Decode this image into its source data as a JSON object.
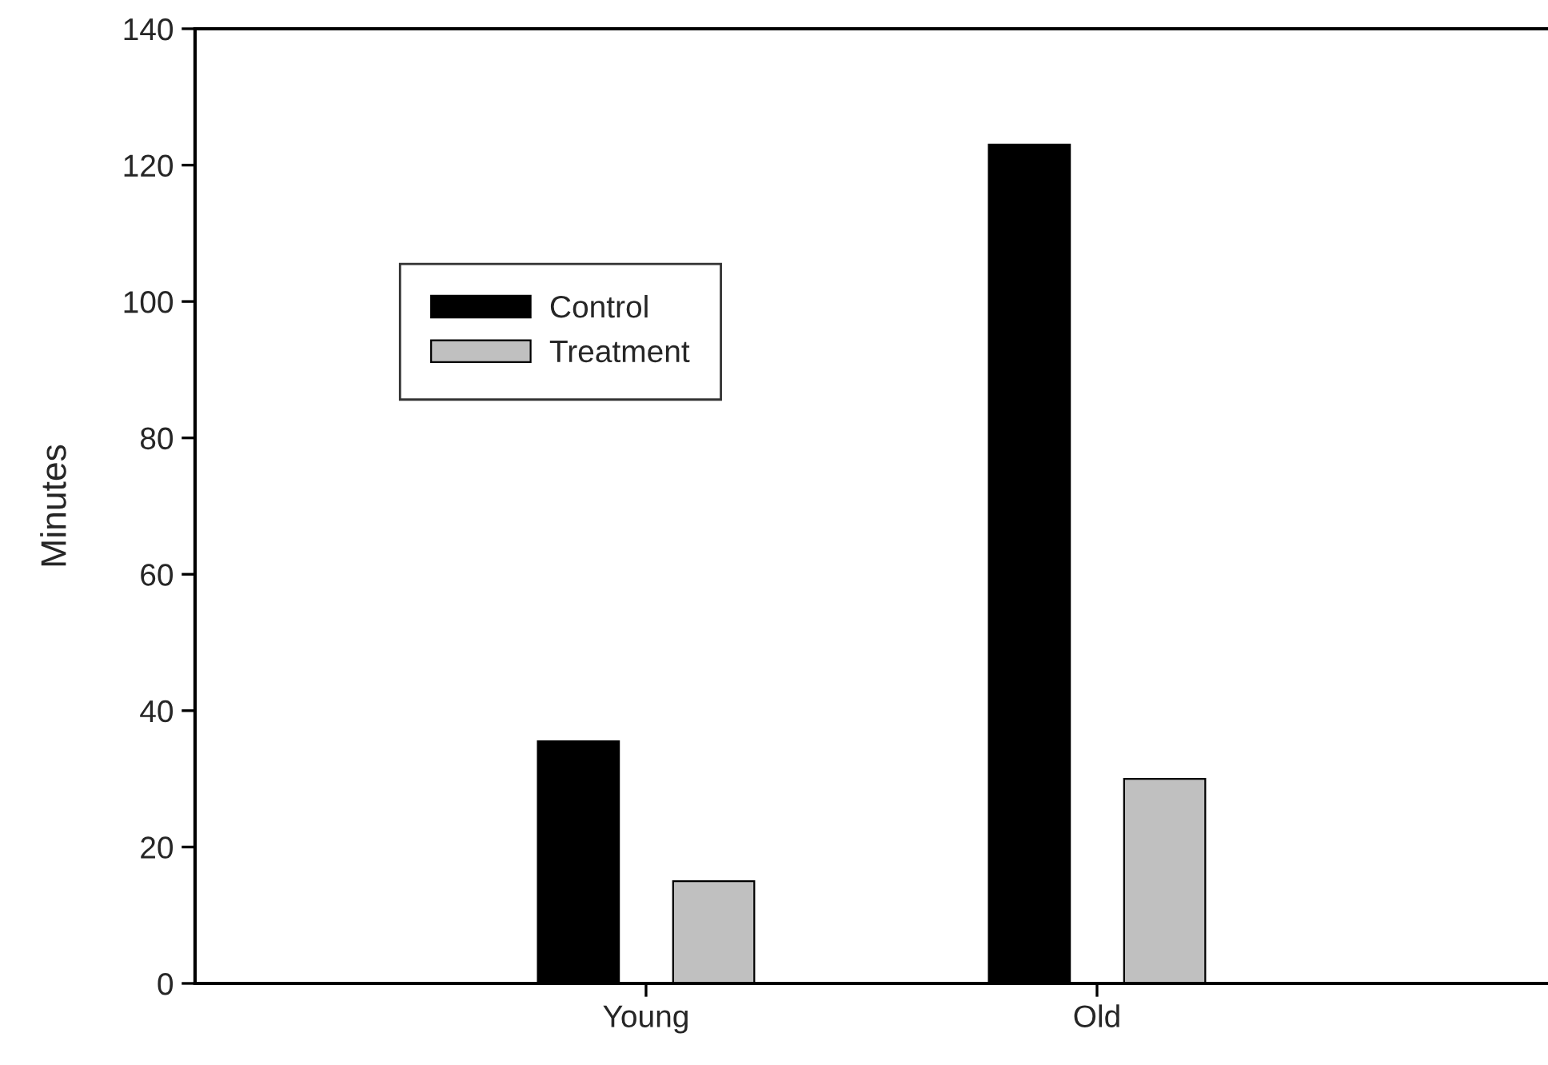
{
  "chart_data": {
    "type": "bar",
    "ylabel": "Minutes",
    "categories": [
      "Young",
      "Old"
    ],
    "series": [
      {
        "name": "Control",
        "color": "#000000",
        "values": [
          35.5,
          123
        ]
      },
      {
        "name": "Treatment",
        "color": "#c0c0c0",
        "values": [
          15,
          30
        ]
      }
    ],
    "ylim": [
      0,
      140
    ],
    "yticks": [
      0,
      20,
      40,
      60,
      80,
      100,
      120,
      140
    ],
    "grid": false,
    "legend": "top left"
  }
}
